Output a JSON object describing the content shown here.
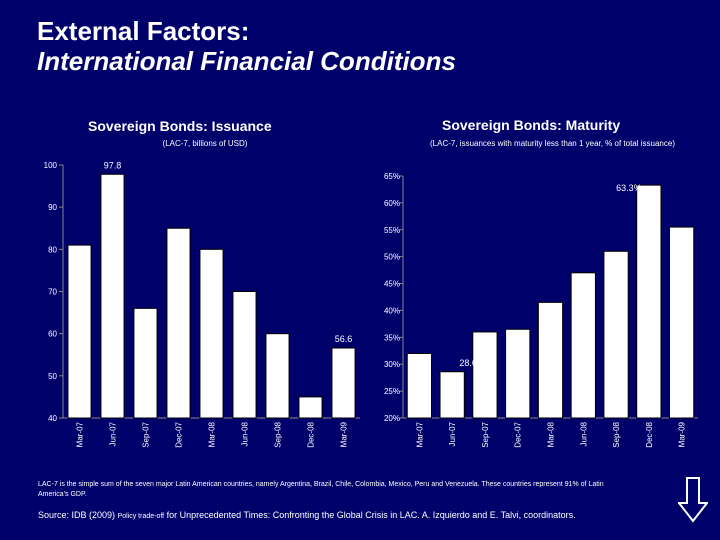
{
  "slide": {
    "title_line1": "External Factors:",
    "title_line2": "International Financial Conditions",
    "footnote": "LAC-7 is the simple sum of the seven major Latin American countries, namely Argentina, Brazil, Chile, Colombia, Mexico, Peru and Venezuela. These countries represent 91% of Latin America's GDP.",
    "source_prefix": "Source: IDB (2009)",
    "source_small": "Policy trade-off",
    "source_suffix": "for Unprecedented Times: Confronting the Global Crisis in LAC. A. Izquierdo and E. Talvi, coordinators.",
    "colors": {
      "background": "#00006b",
      "bar": "#ffffff",
      "bar_outline": "#000000",
      "axis": "#888888"
    }
  },
  "chart_data": [
    {
      "type": "bar",
      "title": "Sovereign Bonds: Issuance",
      "subtitle": "(LAC-7, billions of USD)",
      "categories": [
        "Mar-07",
        "Jun-07",
        "Sep-07",
        "Dec-07",
        "Mar-08",
        "Jun-08",
        "Sep-08",
        "Dec-08",
        "Mar-09"
      ],
      "values": [
        81,
        97.8,
        66,
        85,
        80,
        70,
        60,
        45,
        56.6
      ],
      "ylim": [
        40,
        100
      ],
      "yticks": [
        "40",
        "50",
        "60",
        "70",
        "80",
        "90",
        "100"
      ],
      "yticks_values": [
        40,
        50,
        60,
        70,
        80,
        90,
        100
      ],
      "data_labels": {
        "1": "97.8",
        "8": "56.6"
      },
      "xlabel": "",
      "ylabel": ""
    },
    {
      "type": "bar",
      "title": "Sovereign Bonds: Maturity",
      "subtitle": "(LAC-7, issuances with maturity less than 1 year, % of total issuance)",
      "categories": [
        "Mar-07",
        "Jun-07",
        "Sep-07",
        "Dec-07",
        "Mar-08",
        "Jun-08",
        "Sep-08",
        "Dec-08",
        "Mar-09"
      ],
      "values": [
        32,
        28.6,
        36,
        36.5,
        41.5,
        47,
        51,
        63.3,
        55.5
      ],
      "ylim": [
        20,
        65
      ],
      "yticks": [
        "20%",
        "25%",
        "30%",
        "35%",
        "40%",
        "45%",
        "50%",
        "55%",
        "60%",
        "65%"
      ],
      "yticks_values": [
        20,
        25,
        30,
        35,
        40,
        45,
        50,
        55,
        60,
        65
      ],
      "data_labels": {
        "1": "28.6%",
        "7": "63.3%"
      },
      "xlabel": "",
      "ylabel": ""
    }
  ]
}
